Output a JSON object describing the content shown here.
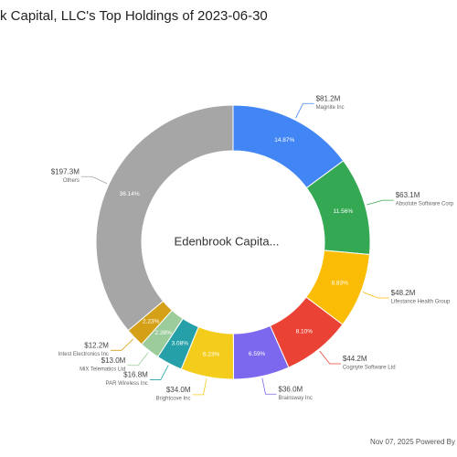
{
  "chart_data": {
    "type": "donut",
    "title": "k Capital, LLC's Top Holdings of 2023-06-30",
    "center_label": "Edenbrook Capita...",
    "categories": [
      "Magnite Inc",
      "Absolute Software Corp",
      "Lifestance Health Group",
      "Cognyte Software Ltd",
      "Brainsway Inc",
      "Brightcove Inc",
      "PAR Wireless Inc",
      "MiX Telematics Ltd",
      "Intest Electronics Inc",
      "Others"
    ],
    "values": [
      81.2,
      63.1,
      48.2,
      44.2,
      36.0,
      34.0,
      16.8,
      13.0,
      12.2,
      197.3
    ],
    "value_labels": [
      "$81.2M",
      "$63.1M",
      "$48.2M",
      "$44.2M",
      "$36.0M",
      "$34.0M",
      "$16.8M",
      "$13.0M",
      "$12.2M",
      "$197.3M"
    ],
    "percent_labels": [
      "14.87%",
      "11.56%",
      "8.83%",
      "8.10%",
      "6.59%",
      "6.23%",
      "3.08%",
      "2.38%",
      "2.23%",
      "36.14%"
    ],
    "colors": [
      "#4285f4",
      "#34a853",
      "#fbbc05",
      "#ea4335",
      "#7b68ee",
      "#f4cc1c",
      "#26a0a8",
      "#9ccc9c",
      "#d4a017",
      "#a6a6a6"
    ],
    "footer": "Nov 07, 2025   Powered By"
  }
}
